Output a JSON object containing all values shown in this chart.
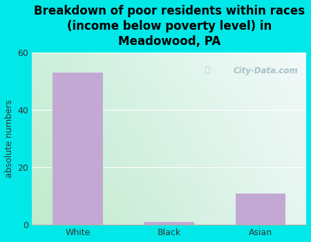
{
  "categories": [
    "White",
    "Black",
    "Asian"
  ],
  "values": [
    53,
    1,
    11
  ],
  "bar_color": "#c4a8d4",
  "title": "Breakdown of poor residents within races\n(income below poverty level) in\nMeadowood, PA",
  "ylabel": "absolute numbers",
  "ylim": [
    0,
    60
  ],
  "yticks": [
    0,
    20,
    40,
    60
  ],
  "background_color": "#00e8e8",
  "grad_topleft": "#cce8d8",
  "grad_topright": "#e8f4f4",
  "grad_bottomleft": "#c0e8c8",
  "grad_bottomright": "#f0f8f8",
  "watermark": "City-Data.com",
  "title_fontsize": 12,
  "ylabel_fontsize": 9,
  "tick_fontsize": 9,
  "grid_color": "#cccccc"
}
